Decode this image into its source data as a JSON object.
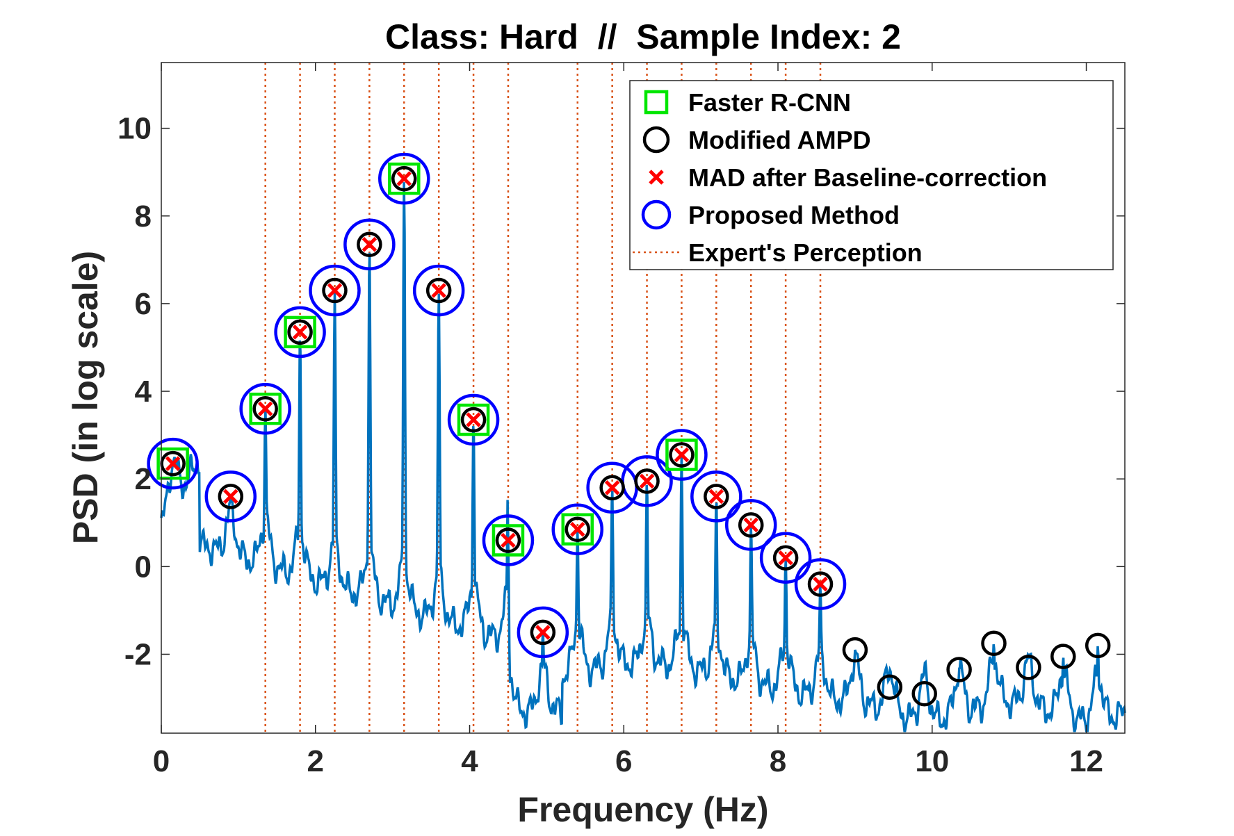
{
  "chart_data": {
    "type": "line",
    "title": "Class: Hard  //  Sample Index: 2",
    "xlabel": "Frequency (Hz)",
    "ylabel": "PSD (in log scale)",
    "xlim": [
      0,
      12.5
    ],
    "ylim": [
      -3.8,
      11.5
    ],
    "xticks": [
      0,
      2,
      4,
      6,
      8,
      10,
      12
    ],
    "yticks": [
      -2,
      0,
      2,
      4,
      6,
      8,
      10
    ],
    "xtick_labels": [
      "0",
      "2",
      "4",
      "6",
      "8",
      "10",
      "12"
    ],
    "ytick_labels": [
      "-2",
      "0",
      "2",
      "4",
      "6",
      "8",
      "10"
    ],
    "grid": false,
    "legend_position": "top-right",
    "series": [
      {
        "name": "PSD signal",
        "color": "#0072BD",
        "peaks": [
          [
            0.15,
            2.35
          ],
          [
            0.9,
            1.6
          ],
          [
            1.35,
            3.6
          ],
          [
            1.8,
            5.35
          ],
          [
            2.25,
            6.3
          ],
          [
            2.7,
            7.35
          ],
          [
            3.15,
            8.85
          ],
          [
            3.6,
            6.3
          ],
          [
            4.05,
            3.35
          ],
          [
            4.5,
            0.6
          ],
          [
            4.95,
            -1.5
          ],
          [
            5.4,
            0.85
          ],
          [
            5.85,
            1.8
          ],
          [
            6.3,
            1.95
          ],
          [
            6.75,
            2.55
          ],
          [
            7.2,
            1.6
          ],
          [
            7.65,
            0.95
          ],
          [
            8.1,
            0.2
          ],
          [
            8.55,
            -0.4
          ],
          [
            9.0,
            -1.9
          ],
          [
            9.45,
            -2.75
          ],
          [
            9.9,
            -2.9
          ],
          [
            10.35,
            -2.35
          ],
          [
            10.8,
            -1.75
          ],
          [
            11.25,
            -2.3
          ],
          [
            11.7,
            -2.05
          ],
          [
            12.15,
            -1.8
          ]
        ]
      },
      {
        "name": "Faster R-CNN",
        "marker": "square",
        "color": "#00E600",
        "points": [
          [
            0.15,
            2.35
          ],
          [
            1.35,
            3.6
          ],
          [
            1.8,
            5.35
          ],
          [
            3.15,
            8.85
          ],
          [
            4.05,
            3.35
          ],
          [
            4.5,
            0.6
          ],
          [
            5.4,
            0.85
          ],
          [
            6.75,
            2.55
          ]
        ]
      },
      {
        "name": "Modified AMPD",
        "marker": "circle",
        "color": "#000000",
        "points": [
          [
            0.15,
            2.35
          ],
          [
            0.9,
            1.6
          ],
          [
            1.35,
            3.6
          ],
          [
            1.8,
            5.35
          ],
          [
            2.25,
            6.3
          ],
          [
            2.7,
            7.35
          ],
          [
            3.15,
            8.85
          ],
          [
            3.6,
            6.3
          ],
          [
            4.05,
            3.35
          ],
          [
            4.5,
            0.6
          ],
          [
            4.95,
            -1.5
          ],
          [
            5.4,
            0.85
          ],
          [
            5.85,
            1.8
          ],
          [
            6.3,
            1.95
          ],
          [
            6.75,
            2.55
          ],
          [
            7.2,
            1.6
          ],
          [
            7.65,
            0.95
          ],
          [
            8.1,
            0.2
          ],
          [
            8.55,
            -0.4
          ],
          [
            9.0,
            -1.9
          ],
          [
            9.45,
            -2.75
          ],
          [
            9.9,
            -2.9
          ],
          [
            10.35,
            -2.35
          ],
          [
            10.8,
            -1.75
          ],
          [
            11.25,
            -2.3
          ],
          [
            11.7,
            -2.05
          ],
          [
            12.15,
            -1.8
          ]
        ]
      },
      {
        "name": "MAD after Baseline-correction",
        "marker": "x",
        "color": "#FF0000",
        "points": [
          [
            0.15,
            2.35
          ],
          [
            0.9,
            1.6
          ],
          [
            1.35,
            3.6
          ],
          [
            1.8,
            5.35
          ],
          [
            2.25,
            6.3
          ],
          [
            2.7,
            7.35
          ],
          [
            3.15,
            8.85
          ],
          [
            3.6,
            6.3
          ],
          [
            4.05,
            3.35
          ],
          [
            4.5,
            0.6
          ],
          [
            4.95,
            -1.5
          ],
          [
            5.4,
            0.85
          ],
          [
            5.85,
            1.8
          ],
          [
            6.3,
            1.95
          ],
          [
            6.75,
            2.55
          ],
          [
            7.2,
            1.6
          ],
          [
            7.65,
            0.95
          ],
          [
            8.1,
            0.2
          ],
          [
            8.55,
            -0.4
          ]
        ]
      },
      {
        "name": "Proposed Method",
        "marker": "circle-large",
        "color": "#0000FF",
        "points": [
          [
            0.15,
            2.35
          ],
          [
            0.9,
            1.6
          ],
          [
            1.35,
            3.6
          ],
          [
            1.8,
            5.35
          ],
          [
            2.25,
            6.3
          ],
          [
            2.7,
            7.35
          ],
          [
            3.15,
            8.85
          ],
          [
            3.6,
            6.3
          ],
          [
            4.05,
            3.35
          ],
          [
            4.5,
            0.6
          ],
          [
            4.95,
            -1.5
          ],
          [
            5.4,
            0.85
          ],
          [
            5.85,
            1.8
          ],
          [
            6.3,
            1.95
          ],
          [
            6.75,
            2.55
          ],
          [
            7.2,
            1.6
          ],
          [
            7.65,
            0.95
          ],
          [
            8.1,
            0.2
          ],
          [
            8.55,
            -0.4
          ]
        ]
      },
      {
        "name": "Expert's Perception",
        "marker": "vertical-dotted-line",
        "color": "#D95319",
        "x": [
          1.35,
          1.8,
          2.25,
          2.7,
          3.15,
          3.6,
          4.05,
          4.5,
          5.4,
          5.85,
          6.3,
          6.75,
          7.2,
          7.65,
          8.1,
          8.55
        ]
      }
    ]
  }
}
